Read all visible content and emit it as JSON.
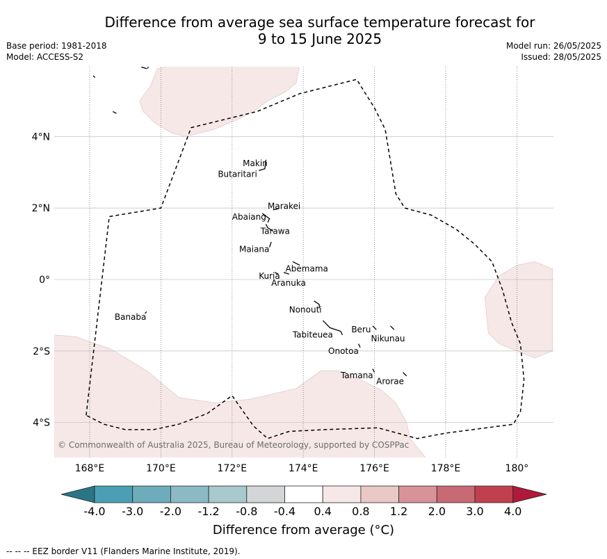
{
  "title_line1": "Difference from average sea surface temperature forecast for",
  "title_line2": "9 to 15 June 2025",
  "meta_left": {
    "base_period": "Base period: 1981-2018",
    "model": "Model: ACCESS-S2"
  },
  "meta_right": {
    "model_run": "Model run: 26/05/2025",
    "issued": "Issued: 28/05/2025"
  },
  "map": {
    "lat_range": [
      -5,
      6
    ],
    "lon_range": [
      167,
      181
    ],
    "lat_ticks": [
      {
        "value": 4,
        "label": "4°N"
      },
      {
        "value": 2,
        "label": "2°N"
      },
      {
        "value": 0,
        "label": "0°"
      },
      {
        "value": -2,
        "label": "2°S"
      },
      {
        "value": -4,
        "label": "4°S"
      }
    ],
    "lon_ticks": [
      {
        "value": 168,
        "label": "168°E"
      },
      {
        "value": 170,
        "label": "170°E"
      },
      {
        "value": 172,
        "label": "172°E"
      },
      {
        "value": 174,
        "label": "174°E"
      },
      {
        "value": 176,
        "label": "176°E"
      },
      {
        "value": 178,
        "label": "178°E"
      },
      {
        "value": 180,
        "label": "180°"
      }
    ],
    "places": [
      {
        "name": "Makin",
        "lon": 172.3,
        "lat": 3.25
      },
      {
        "name": "Butaritari",
        "lon": 171.6,
        "lat": 2.95
      },
      {
        "name": "Marakei",
        "lon": 173.0,
        "lat": 2.05
      },
      {
        "name": "Abaiang",
        "lon": 172.0,
        "lat": 1.75
      },
      {
        "name": "Tarawa",
        "lon": 172.8,
        "lat": 1.35
      },
      {
        "name": "Maiana",
        "lon": 172.2,
        "lat": 0.85
      },
      {
        "name": "Abemama",
        "lon": 173.5,
        "lat": 0.3
      },
      {
        "name": "Kuria",
        "lon": 172.75,
        "lat": 0.1
      },
      {
        "name": "Aranuka",
        "lon": 173.1,
        "lat": -0.1
      },
      {
        "name": "Nonouti",
        "lon": 173.6,
        "lat": -0.85
      },
      {
        "name": "Banaba",
        "lon": 168.7,
        "lat": -1.05
      },
      {
        "name": "Beru",
        "lon": 175.35,
        "lat": -1.4
      },
      {
        "name": "Nikunau",
        "lon": 175.9,
        "lat": -1.65
      },
      {
        "name": "Tabiteuea",
        "lon": 173.7,
        "lat": -1.55
      },
      {
        "name": "Onotoa",
        "lon": 174.7,
        "lat": -2.0
      },
      {
        "name": "Tamana",
        "lon": 175.05,
        "lat": -2.68
      },
      {
        "name": "Arorae",
        "lon": 176.05,
        "lat": -2.85
      }
    ],
    "anomaly_regions": [
      {
        "color": "#f5e8e6",
        "points": [
          [
            169.9,
            5.9
          ],
          [
            170.4,
            6.0
          ],
          [
            171.0,
            6.0
          ],
          [
            172.3,
            6.0
          ],
          [
            173.9,
            6.0
          ],
          [
            173.8,
            5.5
          ],
          [
            173.5,
            5.25
          ],
          [
            173.0,
            5.0
          ],
          [
            172.6,
            4.7
          ],
          [
            172.2,
            4.5
          ],
          [
            171.5,
            4.2
          ],
          [
            170.7,
            4.0
          ],
          [
            170.3,
            4.1
          ],
          [
            169.8,
            4.4
          ],
          [
            169.5,
            4.7
          ],
          [
            169.4,
            5.0
          ],
          [
            169.7,
            5.4
          ],
          [
            169.9,
            5.9
          ]
        ]
      },
      {
        "color": "#f5e8e6",
        "points": [
          [
            167.0,
            -1.55
          ],
          [
            167.6,
            -1.6
          ],
          [
            168.6,
            -1.95
          ],
          [
            169.6,
            -2.55
          ],
          [
            170.5,
            -3.3
          ],
          [
            171.5,
            -3.45
          ],
          [
            172.5,
            -3.35
          ],
          [
            173.8,
            -3.05
          ],
          [
            174.5,
            -2.55
          ],
          [
            175.0,
            -2.55
          ],
          [
            175.5,
            -2.75
          ],
          [
            176.2,
            -3.1
          ],
          [
            176.6,
            -3.45
          ],
          [
            176.9,
            -4.0
          ],
          [
            177.0,
            -4.45
          ],
          [
            177.45,
            -5.0
          ],
          [
            175.0,
            -5.0
          ],
          [
            173.0,
            -5.0
          ],
          [
            171.0,
            -5.0
          ],
          [
            169.0,
            -5.0
          ],
          [
            167.0,
            -5.0
          ]
        ]
      },
      {
        "color": "#f5e8e6",
        "points": [
          [
            181.0,
            0.3
          ],
          [
            180.5,
            0.5
          ],
          [
            180.0,
            0.4
          ],
          [
            179.5,
            0.1
          ],
          [
            179.1,
            -0.5
          ],
          [
            179.2,
            -1.5
          ],
          [
            179.5,
            -1.8
          ],
          [
            180.5,
            -2.2
          ],
          [
            181.0,
            -2.0
          ]
        ]
      }
    ],
    "eez_border": [
      [
        167.9,
        -3.8
      ],
      [
        168.55,
        1.76
      ],
      [
        170.0,
        2.0
      ],
      [
        170.85,
        4.25
      ],
      [
        172.7,
        4.7
      ],
      [
        173.9,
        5.2
      ],
      [
        175.5,
        5.6
      ],
      [
        176.0,
        4.8
      ],
      [
        176.3,
        4.2
      ],
      [
        176.6,
        2.4
      ],
      [
        176.85,
        2.0
      ],
      [
        177.6,
        1.8
      ],
      [
        178.3,
        1.4
      ],
      [
        178.8,
        1.0
      ],
      [
        179.3,
        0.5
      ],
      [
        179.6,
        -0.3
      ],
      [
        179.85,
        -1.2
      ],
      [
        180.1,
        -1.8
      ],
      [
        180.2,
        -2.8
      ],
      [
        180.1,
        -3.7
      ],
      [
        179.9,
        -4.05
      ],
      [
        178.0,
        -4.3
      ],
      [
        177.2,
        -4.45
      ],
      [
        176.1,
        -4.15
      ],
      [
        174.6,
        -4.2
      ],
      [
        173.6,
        -4.25
      ],
      [
        173.0,
        -4.45
      ],
      [
        172.6,
        -4.1
      ],
      [
        172.0,
        -3.25
      ],
      [
        171.3,
        -3.75
      ],
      [
        170.5,
        -4.05
      ],
      [
        169.8,
        -4.2
      ],
      [
        169.0,
        -4.2
      ],
      [
        168.4,
        -4.05
      ],
      [
        167.9,
        -3.8
      ]
    ]
  },
  "copyright": "© Commonwealth of Australia 2025, Bureau of Meteorology, supported by COSPPac",
  "colorbar": {
    "extend_low_color": "#2b7587",
    "extend_high_color": "#b0193a",
    "bins": [
      "#4aa0b2",
      "#6eacbb",
      "#8bbac5",
      "#a8c9cd",
      "#d3d5d6",
      "#ffffff",
      "#f5e8e6",
      "#e9c9c5",
      "#d8929a",
      "#c86a74",
      "#c0404f"
    ],
    "labels": [
      "-4.0",
      "-3.0",
      "-2.0",
      "-1.2",
      "-0.8",
      "-0.4",
      "0.4",
      "0.8",
      "1.2",
      "2.0",
      "3.0",
      "4.0"
    ],
    "title": "Difference from average (°C)"
  },
  "footnote": "--  --  -- EEZ border V11 (Flanders Marine Institute, 2019)."
}
